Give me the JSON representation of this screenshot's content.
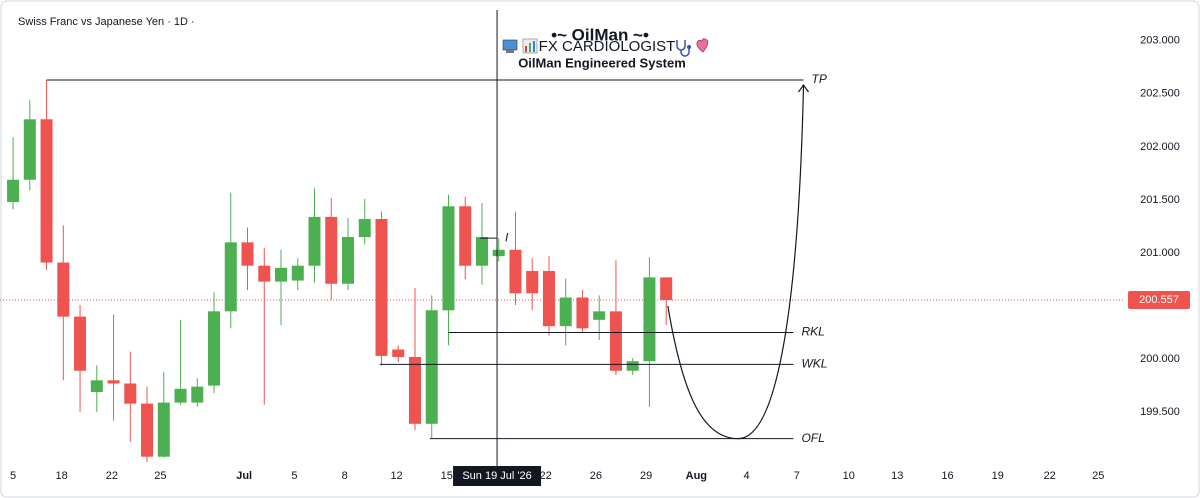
{
  "chart_data": {
    "type": "candlestick",
    "title": "Swiss Franc vs Japanese Yen · 1D ·",
    "header_title": "•~ OilMan ~•",
    "header_subtitle": "FX CARDIOLOGIST",
    "header_caption": "OilMan Engineered System",
    "x": [
      0,
      1,
      2,
      3,
      4,
      5,
      6,
      7,
      8,
      9,
      10,
      11,
      12,
      13,
      14,
      15,
      16,
      17,
      18,
      19,
      20,
      21,
      22,
      23,
      24,
      25,
      26,
      27,
      28,
      29,
      30,
      31,
      32,
      33,
      34,
      35,
      36,
      37,
      38,
      39
    ],
    "open": [
      201.48,
      201.69,
      202.26,
      200.91,
      200.4,
      199.69,
      199.8,
      199.77,
      199.58,
      199.08,
      199.59,
      199.59,
      199.75,
      200.45,
      201.1,
      200.88,
      200.73,
      200.74,
      200.88,
      201.34,
      200.71,
      201.15,
      201.32,
      200.09,
      200.02,
      199.39,
      200.46,
      201.44,
      200.88,
      200.97,
      201.03,
      200.83,
      200.83,
      200.31,
      200.58,
      200.37,
      200.45,
      199.89,
      199.98,
      200.77
    ],
    "high": [
      202.09,
      202.44,
      202.63,
      201.26,
      200.51,
      199.94,
      200.42,
      200.07,
      199.74,
      199.88,
      200.37,
      199.82,
      200.63,
      201.57,
      201.24,
      201.05,
      201.03,
      200.95,
      201.61,
      201.52,
      201.33,
      201.51,
      201.39,
      200.13,
      200.67,
      200.6,
      201.55,
      201.53,
      201.47,
      201.14,
      201.39,
      200.95,
      200.97,
      200.76,
      200.65,
      200.6,
      200.93,
      200.01,
      200.96,
      200.77
    ],
    "low": [
      201.41,
      201.59,
      200.84,
      199.8,
      199.5,
      199.5,
      199.42,
      199.22,
      199.03,
      199.07,
      199.57,
      199.55,
      199.68,
      200.29,
      200.65,
      199.57,
      200.32,
      200.65,
      200.72,
      200.56,
      200.65,
      201.08,
      199.94,
      199.97,
      199.33,
      199.25,
      200.13,
      200.75,
      200.7,
      200.92,
      200.51,
      200.46,
      200.22,
      200.13,
      200.25,
      200.18,
      199.85,
      199.85,
      199.55,
      200.32
    ],
    "close": [
      201.69,
      202.26,
      200.91,
      200.4,
      199.89,
      199.8,
      199.77,
      199.58,
      199.08,
      199.59,
      199.72,
      199.74,
      200.45,
      201.1,
      200.88,
      200.73,
      200.86,
      200.88,
      201.34,
      200.71,
      201.15,
      201.32,
      200.03,
      200.02,
      199.39,
      200.46,
      201.44,
      200.88,
      201.15,
      201.03,
      200.62,
      200.62,
      200.31,
      200.58,
      200.29,
      200.45,
      199.89,
      199.98,
      200.77,
      200.557
    ],
    "up_color": "#4caf50",
    "down_color": "#ef5350",
    "xlim": [
      -0.78,
      65.8
    ],
    "xticks": [
      {
        "value": 0,
        "label": "5"
      },
      {
        "value": 2.9,
        "label": "18"
      },
      {
        "value": 5.9,
        "label": "22"
      },
      {
        "value": 8.8,
        "label": "25"
      },
      {
        "value": 13.8,
        "label": "Jul"
      },
      {
        "value": 16.8,
        "label": "5"
      },
      {
        "value": 19.8,
        "label": "8"
      },
      {
        "value": 22.9,
        "label": "12"
      },
      {
        "value": 25.9,
        "label": "15"
      },
      {
        "value": 31.8,
        "label": "22"
      },
      {
        "value": 34.8,
        "label": "26"
      },
      {
        "value": 37.8,
        "label": "29"
      },
      {
        "value": 40.8,
        "label": "Aug"
      },
      {
        "value": 43.8,
        "label": "4"
      },
      {
        "value": 46.8,
        "label": "7"
      },
      {
        "value": 49.9,
        "label": "10"
      },
      {
        "value": 52.8,
        "label": "13"
      },
      {
        "value": 55.8,
        "label": "16"
      },
      {
        "value": 58.8,
        "label": "19"
      },
      {
        "value": 61.9,
        "label": "22"
      },
      {
        "value": 64.8,
        "label": "25"
      }
    ],
    "ylim": [
      199.03,
      203.29
    ],
    "yticks": [
      {
        "value": 199.5,
        "label": "199.500"
      },
      {
        "value": 200,
        "label": "200.000"
      },
      {
        "value": 201,
        "label": "201.000"
      },
      {
        "value": 201.5,
        "label": "201.500"
      },
      {
        "value": 202,
        "label": "202.000"
      },
      {
        "value": 202.5,
        "label": "202.500"
      },
      {
        "value": 203,
        "label": "203.000"
      }
    ],
    "grid": false,
    "current_price": {
      "value": 200.557,
      "color": "#ef5350"
    },
    "crosshair": {
      "x": 28.9,
      "label": "Sun 19 Jul '26"
    },
    "levels": [
      {
        "label": "TP",
        "value": 202.63,
        "x_start": 2,
        "x_end": 47.2
      },
      {
        "label": "I",
        "value": 201.14,
        "x_start": 27.9,
        "x_end": 28.9
      },
      {
        "label": "RKL",
        "value": 200.25,
        "x_start": 26,
        "x_end": 46.6
      },
      {
        "label": "WKL",
        "value": 199.95,
        "x_start": 21.9,
        "x_end": 46.6
      },
      {
        "label": "OFL",
        "value": 199.25,
        "x_start": 24.9,
        "x_end": 46.6
      }
    ],
    "projection": {
      "x": [
        39.1,
        43.3,
        47.2
      ],
      "y": [
        200.5,
        199.25,
        202.63
      ]
    }
  }
}
